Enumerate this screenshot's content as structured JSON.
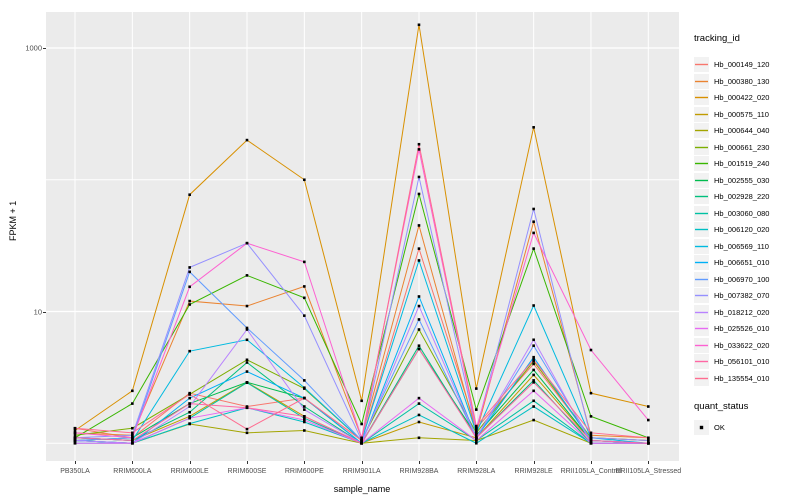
{
  "chart_data": {
    "type": "line",
    "xlabel": "sample_name",
    "ylabel": "FPKM + 1",
    "y_scale": "log10",
    "y_tick_labels": [
      "1000",
      "10"
    ],
    "y_tick_values": [
      1000,
      10
    ],
    "y_gridline_values": [
      1,
      10,
      100,
      1000
    ],
    "ylim_log": [
      0.97,
      1700
    ],
    "grid_color": "#FFFFFF",
    "panel_bg": "#EBEBEB",
    "point_color": "#000000",
    "point_shape": "square",
    "legend_position": "right",
    "categories": [
      "PB350LA",
      "RRIM600LA",
      "RRIM600LE",
      "RRIM600SE",
      "RRIM600PE",
      "RRIM901LA",
      "RRIM928BA",
      "RRIM928LA",
      "RRIM928LE",
      "RRII105LA_Control",
      "RRII105LA_Stressed"
    ],
    "series": [
      {
        "name": "Hb_000149_120",
        "color": "#F8766D",
        "values": [
          1.3,
          1.1,
          2.4,
          1.9,
          2.2,
          1.05,
          30.0,
          1.3,
          4.0,
          1.1,
          1.05
        ]
      },
      {
        "name": "Hb_000380_130",
        "color": "#EA8331",
        "values": [
          1.2,
          1.15,
          12.0,
          11.0,
          15.5,
          1.1,
          45.0,
          1.2,
          48.0,
          1.15,
          1.1
        ]
      },
      {
        "name": "Hb_000422_020",
        "color": "#D89000",
        "values": [
          1.25,
          2.5,
          77.0,
          200,
          100,
          2.1,
          1500,
          2.6,
          250,
          2.4,
          1.9
        ]
      },
      {
        "name": "Hb_000575_110",
        "color": "#C09B00",
        "values": [
          1.1,
          1.05,
          1.6,
          2.9,
          1.6,
          1.0,
          1.45,
          1.1,
          3.3,
          1.05,
          1.0
        ]
      },
      {
        "name": "Hb_000644_040",
        "color": "#A3A500",
        "values": [
          1.05,
          1.0,
          1.4,
          1.2,
          1.25,
          1.0,
          1.1,
          1.05,
          1.5,
          1.0,
          1.0
        ]
      },
      {
        "name": "Hb_000661_230",
        "color": "#7CAE00",
        "values": [
          1.15,
          1.3,
          2.35,
          4.3,
          2.6,
          1.05,
          7.3,
          1.2,
          4.2,
          1.1,
          1.05
        ]
      },
      {
        "name": "Hb_001519_240",
        "color": "#39B600",
        "values": [
          1.1,
          2.0,
          11.3,
          18.8,
          12.7,
          1.4,
          78.0,
          1.8,
          30.0,
          1.6,
          1.1
        ]
      },
      {
        "name": "Hb_002555_030",
        "color": "#00BB4E",
        "values": [
          1.05,
          1.1,
          2.0,
          2.9,
          2.2,
          1.0,
          5.2,
          1.15,
          3.6,
          1.05,
          1.0
        ]
      },
      {
        "name": "Hb_002928_220",
        "color": "#00BF7D",
        "values": [
          1.1,
          1.05,
          1.72,
          4.1,
          1.9,
          1.0,
          5.5,
          1.1,
          3.0,
          1.0,
          1.0
        ]
      },
      {
        "name": "Hb_003060_080",
        "color": "#00C1A3",
        "values": [
          1.05,
          1.0,
          1.55,
          2.88,
          1.55,
          1.0,
          2.0,
          1.05,
          2.1,
          1.0,
          1.0
        ]
      },
      {
        "name": "Hb_006120_020",
        "color": "#00BFC4",
        "values": [
          1.0,
          1.0,
          1.41,
          1.86,
          1.45,
          1.0,
          1.64,
          1.0,
          1.9,
          1.0,
          1.0
        ]
      },
      {
        "name": "Hb_006569_110",
        "color": "#00BAE0",
        "values": [
          1.1,
          1.05,
          5.0,
          6.1,
          2.64,
          1.05,
          24.4,
          1.2,
          11.1,
          1.1,
          1.0
        ]
      },
      {
        "name": "Hb_006651_010",
        "color": "#00B0F6",
        "values": [
          1.05,
          1.0,
          2.2,
          3.5,
          2.2,
          1.0,
          13.0,
          1.1,
          4.5,
          1.05,
          1.0
        ]
      },
      {
        "name": "Hb_006970_100",
        "color": "#619CFF",
        "values": [
          1.05,
          1.1,
          20.0,
          7.5,
          3.0,
          1.05,
          8.7,
          1.1,
          5.5,
          1.05,
          1.0
        ]
      },
      {
        "name": "Hb_007382_070",
        "color": "#9590FF",
        "values": [
          1.1,
          1.15,
          21.6,
          33.0,
          9.3,
          1.05,
          105,
          1.25,
          60.0,
          1.1,
          1.05
        ]
      },
      {
        "name": "Hb_018212_020",
        "color": "#B983FF",
        "values": [
          1.05,
          1.0,
          1.9,
          7.3,
          1.8,
          1.0,
          11.0,
          1.1,
          6.1,
          1.0,
          1.0
        ]
      },
      {
        "name": "Hb_025526_010",
        "color": "#E76BF3",
        "values": [
          1.0,
          1.0,
          1.55,
          1.86,
          1.5,
          1.0,
          2.2,
          1.05,
          2.5,
          1.0,
          1.0
        ]
      },
      {
        "name": "Hb_033622_020",
        "color": "#FD61D1",
        "values": [
          1.2,
          1.1,
          15.4,
          33.0,
          23.8,
          1.1,
          170,
          1.3,
          39.5,
          5.1,
          1.5
        ]
      },
      {
        "name": "Hb_056101_010",
        "color": "#FF67A4",
        "values": [
          1.1,
          1.05,
          2.0,
          1.86,
          1.6,
          1.0,
          5.2,
          1.1,
          2.9,
          1.05,
          1.0
        ]
      },
      {
        "name": "Hb_135554_010",
        "color": "#FF6C90",
        "values": [
          1.3,
          1.2,
          2.35,
          1.28,
          2.2,
          1.05,
          186,
          1.35,
          4.3,
          1.2,
          1.1
        ]
      }
    ]
  },
  "legend": {
    "color_title": "tracking_id",
    "shape_title": "quant_status",
    "shape_items": [
      {
        "label": "OK",
        "marker": "black-square"
      }
    ]
  }
}
